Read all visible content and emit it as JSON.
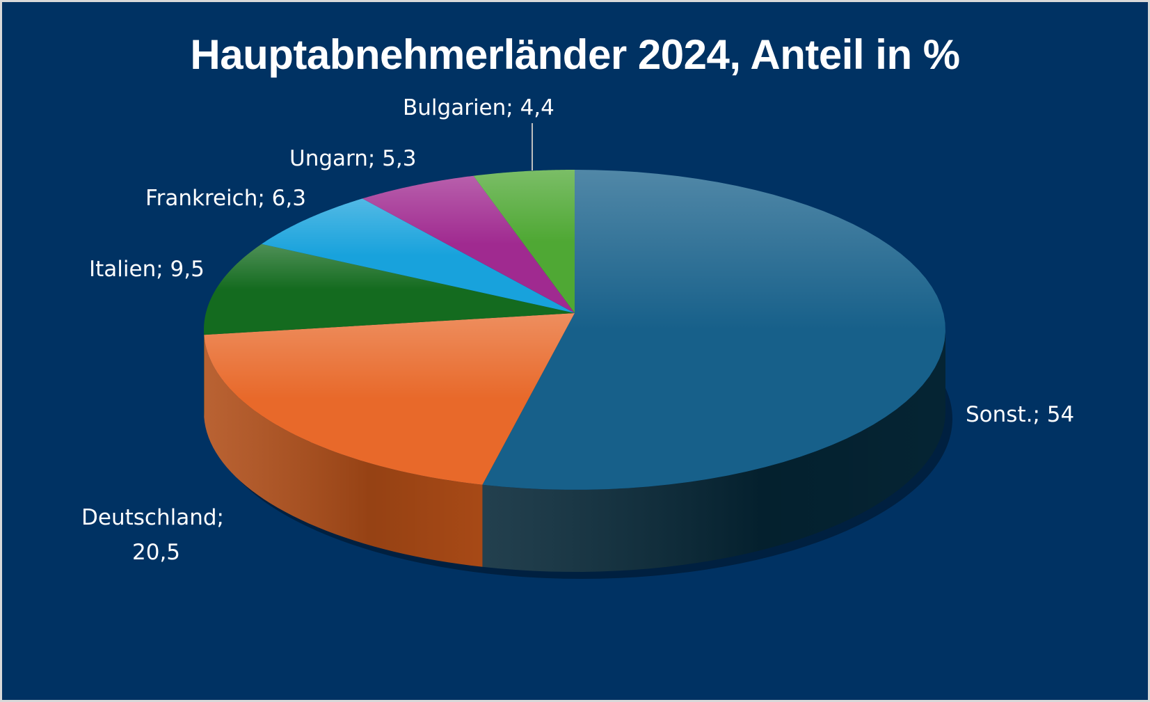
{
  "chart_data": {
    "type": "pie",
    "style": "3d",
    "title": "Hauptabnehmerländer 2024, Anteil in %",
    "slices": [
      {
        "label": "Sonst.",
        "value": 54,
        "display": "Sonst.; 54",
        "color": "#17608a",
        "side": "#052636"
      },
      {
        "label": "Deutschland",
        "value": 20.5,
        "display": "Deutschland;",
        "display2": "20,5",
        "color": "#e8692a",
        "side": "#b04d17"
      },
      {
        "label": "Italien",
        "value": 9.5,
        "display": "Italien; 9,5",
        "color": "#146b1f",
        "side": "#0b4412"
      },
      {
        "label": "Frankreich",
        "value": 6.3,
        "display": "Frankreich; 6,3",
        "color": "#18a2dc",
        "side": "#0d6a93"
      },
      {
        "label": "Ungarn",
        "value": 5.3,
        "display": "Ungarn; 5,3",
        "color": "#a02a90",
        "side": "#6a1a60"
      },
      {
        "label": "Bulgarien",
        "value": 4.4,
        "display": "Bulgarien; 4,4",
        "color": "#4fa834",
        "side": "#33701f"
      }
    ],
    "background": "#003263"
  }
}
